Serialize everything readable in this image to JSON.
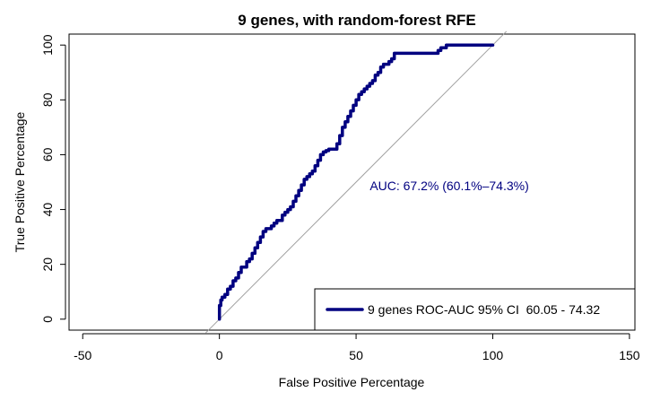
{
  "chart_data": {
    "type": "line",
    "title": "9 genes, with random-forest RFE",
    "xlabel": "False Positive Percentage",
    "ylabel": "True Positive Percentage",
    "xlim": [
      -55,
      152
    ],
    "ylim": [
      -4,
      104
    ],
    "x_ticks": [
      -50,
      0,
      50,
      100,
      150
    ],
    "y_ticks": [
      0,
      20,
      40,
      60,
      80,
      100
    ],
    "grid": false,
    "legend_position": "bottom-right",
    "annotation": {
      "text": "AUC: 67.2% (60.1%–74.3%)",
      "x": 55,
      "y": 47,
      "color": "#000080"
    },
    "diagonal": {
      "from": [
        -5,
        -5
      ],
      "to": [
        105,
        105
      ],
      "color": "#a0a0a0"
    },
    "series": [
      {
        "name": "9 genes ROC-AUC 95% CI  60.05 - 74.32",
        "color": "#000080",
        "x": [
          0,
          0,
          0.5,
          0.5,
          1,
          1,
          2,
          2,
          3,
          3,
          4,
          4,
          5,
          5,
          6,
          6,
          7,
          7,
          8,
          8,
          10,
          10,
          11,
          11,
          12,
          12,
          13,
          13,
          14,
          14,
          15,
          15,
          16,
          16,
          17,
          17,
          19,
          19,
          20,
          20,
          21,
          21,
          23,
          23,
          24,
          24,
          25,
          25,
          26,
          26,
          27,
          27,
          28,
          28,
          29,
          29,
          30,
          30,
          31,
          31,
          32,
          32,
          33,
          33,
          34,
          34,
          35,
          35,
          36,
          36,
          37,
          37,
          38,
          38,
          39,
          39,
          40,
          40,
          43,
          43,
          44,
          44,
          45,
          45,
          46,
          46,
          47,
          47,
          48,
          48,
          49,
          49,
          50,
          50,
          51,
          51,
          52,
          52,
          53,
          53,
          54,
          54,
          55,
          55,
          56,
          56,
          57,
          57,
          58,
          58,
          59,
          59,
          60,
          60,
          62,
          62,
          63,
          63,
          64,
          64,
          80,
          80,
          81,
          81,
          83,
          83,
          86,
          86,
          100
        ],
        "y": [
          0,
          5,
          5,
          7,
          7,
          8,
          8,
          9,
          9,
          11,
          11,
          12,
          12,
          14,
          14,
          15,
          15,
          17,
          17,
          19,
          19,
          21,
          21,
          22,
          22,
          24,
          24,
          26,
          26,
          28,
          28,
          30,
          30,
          32,
          32,
          33,
          33,
          34,
          34,
          35,
          35,
          36,
          36,
          38,
          38,
          39,
          39,
          40,
          40,
          41,
          41,
          43,
          43,
          45,
          45,
          47,
          47,
          49,
          49,
          51,
          51,
          52,
          52,
          53,
          53,
          54,
          54,
          56,
          56,
          58,
          58,
          60,
          60,
          61,
          61,
          61.5,
          61.5,
          62,
          62,
          64,
          64,
          67,
          67,
          70,
          70,
          72,
          72,
          74,
          74,
          76,
          76,
          78,
          78,
          80,
          80,
          82,
          82,
          83,
          83,
          84,
          84,
          85,
          85,
          86,
          86,
          87,
          87,
          89,
          89,
          90,
          90,
          92,
          92,
          93,
          93,
          94,
          94,
          95,
          95,
          97,
          97,
          98,
          98,
          99,
          99,
          100,
          100,
          100,
          100
        ]
      }
    ]
  }
}
